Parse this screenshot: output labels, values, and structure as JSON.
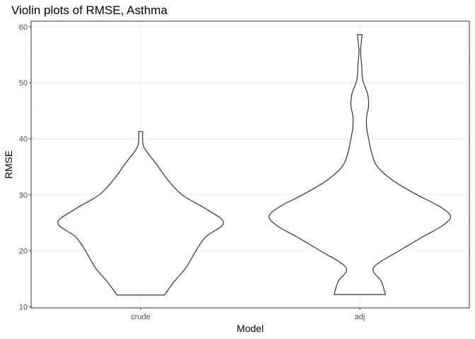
{
  "chart_data": {
    "type": "violin",
    "title": "Violin plots of RMSE, Asthma",
    "xlabel": "Model",
    "ylabel": "RMSE",
    "categories": [
      "crude",
      "adj"
    ],
    "yticks": [
      10,
      20,
      30,
      40,
      50,
      60
    ],
    "ylim": [
      9.8,
      61.0
    ],
    "grid": true,
    "series": [
      {
        "name": "crude",
        "min": 12.1,
        "max": 41.3,
        "density_profile": [
          {
            "y": 12.1,
            "halfwidth": 0.12
          },
          {
            "y": 14.5,
            "halfwidth": 0.17
          },
          {
            "y": 17.0,
            "halfwidth": 0.23
          },
          {
            "y": 20.0,
            "halfwidth": 0.28
          },
          {
            "y": 22.5,
            "halfwidth": 0.33
          },
          {
            "y": 25.0,
            "halfwidth": 0.42
          },
          {
            "y": 27.5,
            "halfwidth": 0.33
          },
          {
            "y": 30.0,
            "halfwidth": 0.21
          },
          {
            "y": 33.0,
            "halfwidth": 0.13
          },
          {
            "y": 35.5,
            "halfwidth": 0.08
          },
          {
            "y": 37.5,
            "halfwidth": 0.035
          },
          {
            "y": 39.0,
            "halfwidth": 0.012
          },
          {
            "y": 41.3,
            "halfwidth": 0.01
          }
        ]
      },
      {
        "name": "adj",
        "min": 12.2,
        "max": 58.6,
        "density_profile": [
          {
            "y": 12.2,
            "halfwidth": 0.13
          },
          {
            "y": 14.5,
            "halfwidth": 0.11
          },
          {
            "y": 17.0,
            "halfwidth": 0.07
          },
          {
            "y": 20.0,
            "halfwidth": 0.2
          },
          {
            "y": 22.5,
            "halfwidth": 0.32
          },
          {
            "y": 24.5,
            "halfwidth": 0.42
          },
          {
            "y": 26.2,
            "halfwidth": 0.46
          },
          {
            "y": 28.0,
            "halfwidth": 0.4
          },
          {
            "y": 30.0,
            "halfwidth": 0.29
          },
          {
            "y": 32.5,
            "halfwidth": 0.17
          },
          {
            "y": 35.0,
            "halfwidth": 0.09
          },
          {
            "y": 37.5,
            "halfwidth": 0.06
          },
          {
            "y": 40.0,
            "halfwidth": 0.045
          },
          {
            "y": 42.0,
            "halfwidth": 0.035
          },
          {
            "y": 44.0,
            "halfwidth": 0.035
          },
          {
            "y": 46.0,
            "halfwidth": 0.045
          },
          {
            "y": 48.0,
            "halfwidth": 0.04
          },
          {
            "y": 50.5,
            "halfwidth": 0.015
          },
          {
            "y": 53.0,
            "halfwidth": 0.01
          },
          {
            "y": 55.5,
            "halfwidth": 0.004
          },
          {
            "y": 57.3,
            "halfwidth": 0.008
          },
          {
            "y": 58.6,
            "halfwidth": 0.012
          }
        ]
      }
    ]
  }
}
